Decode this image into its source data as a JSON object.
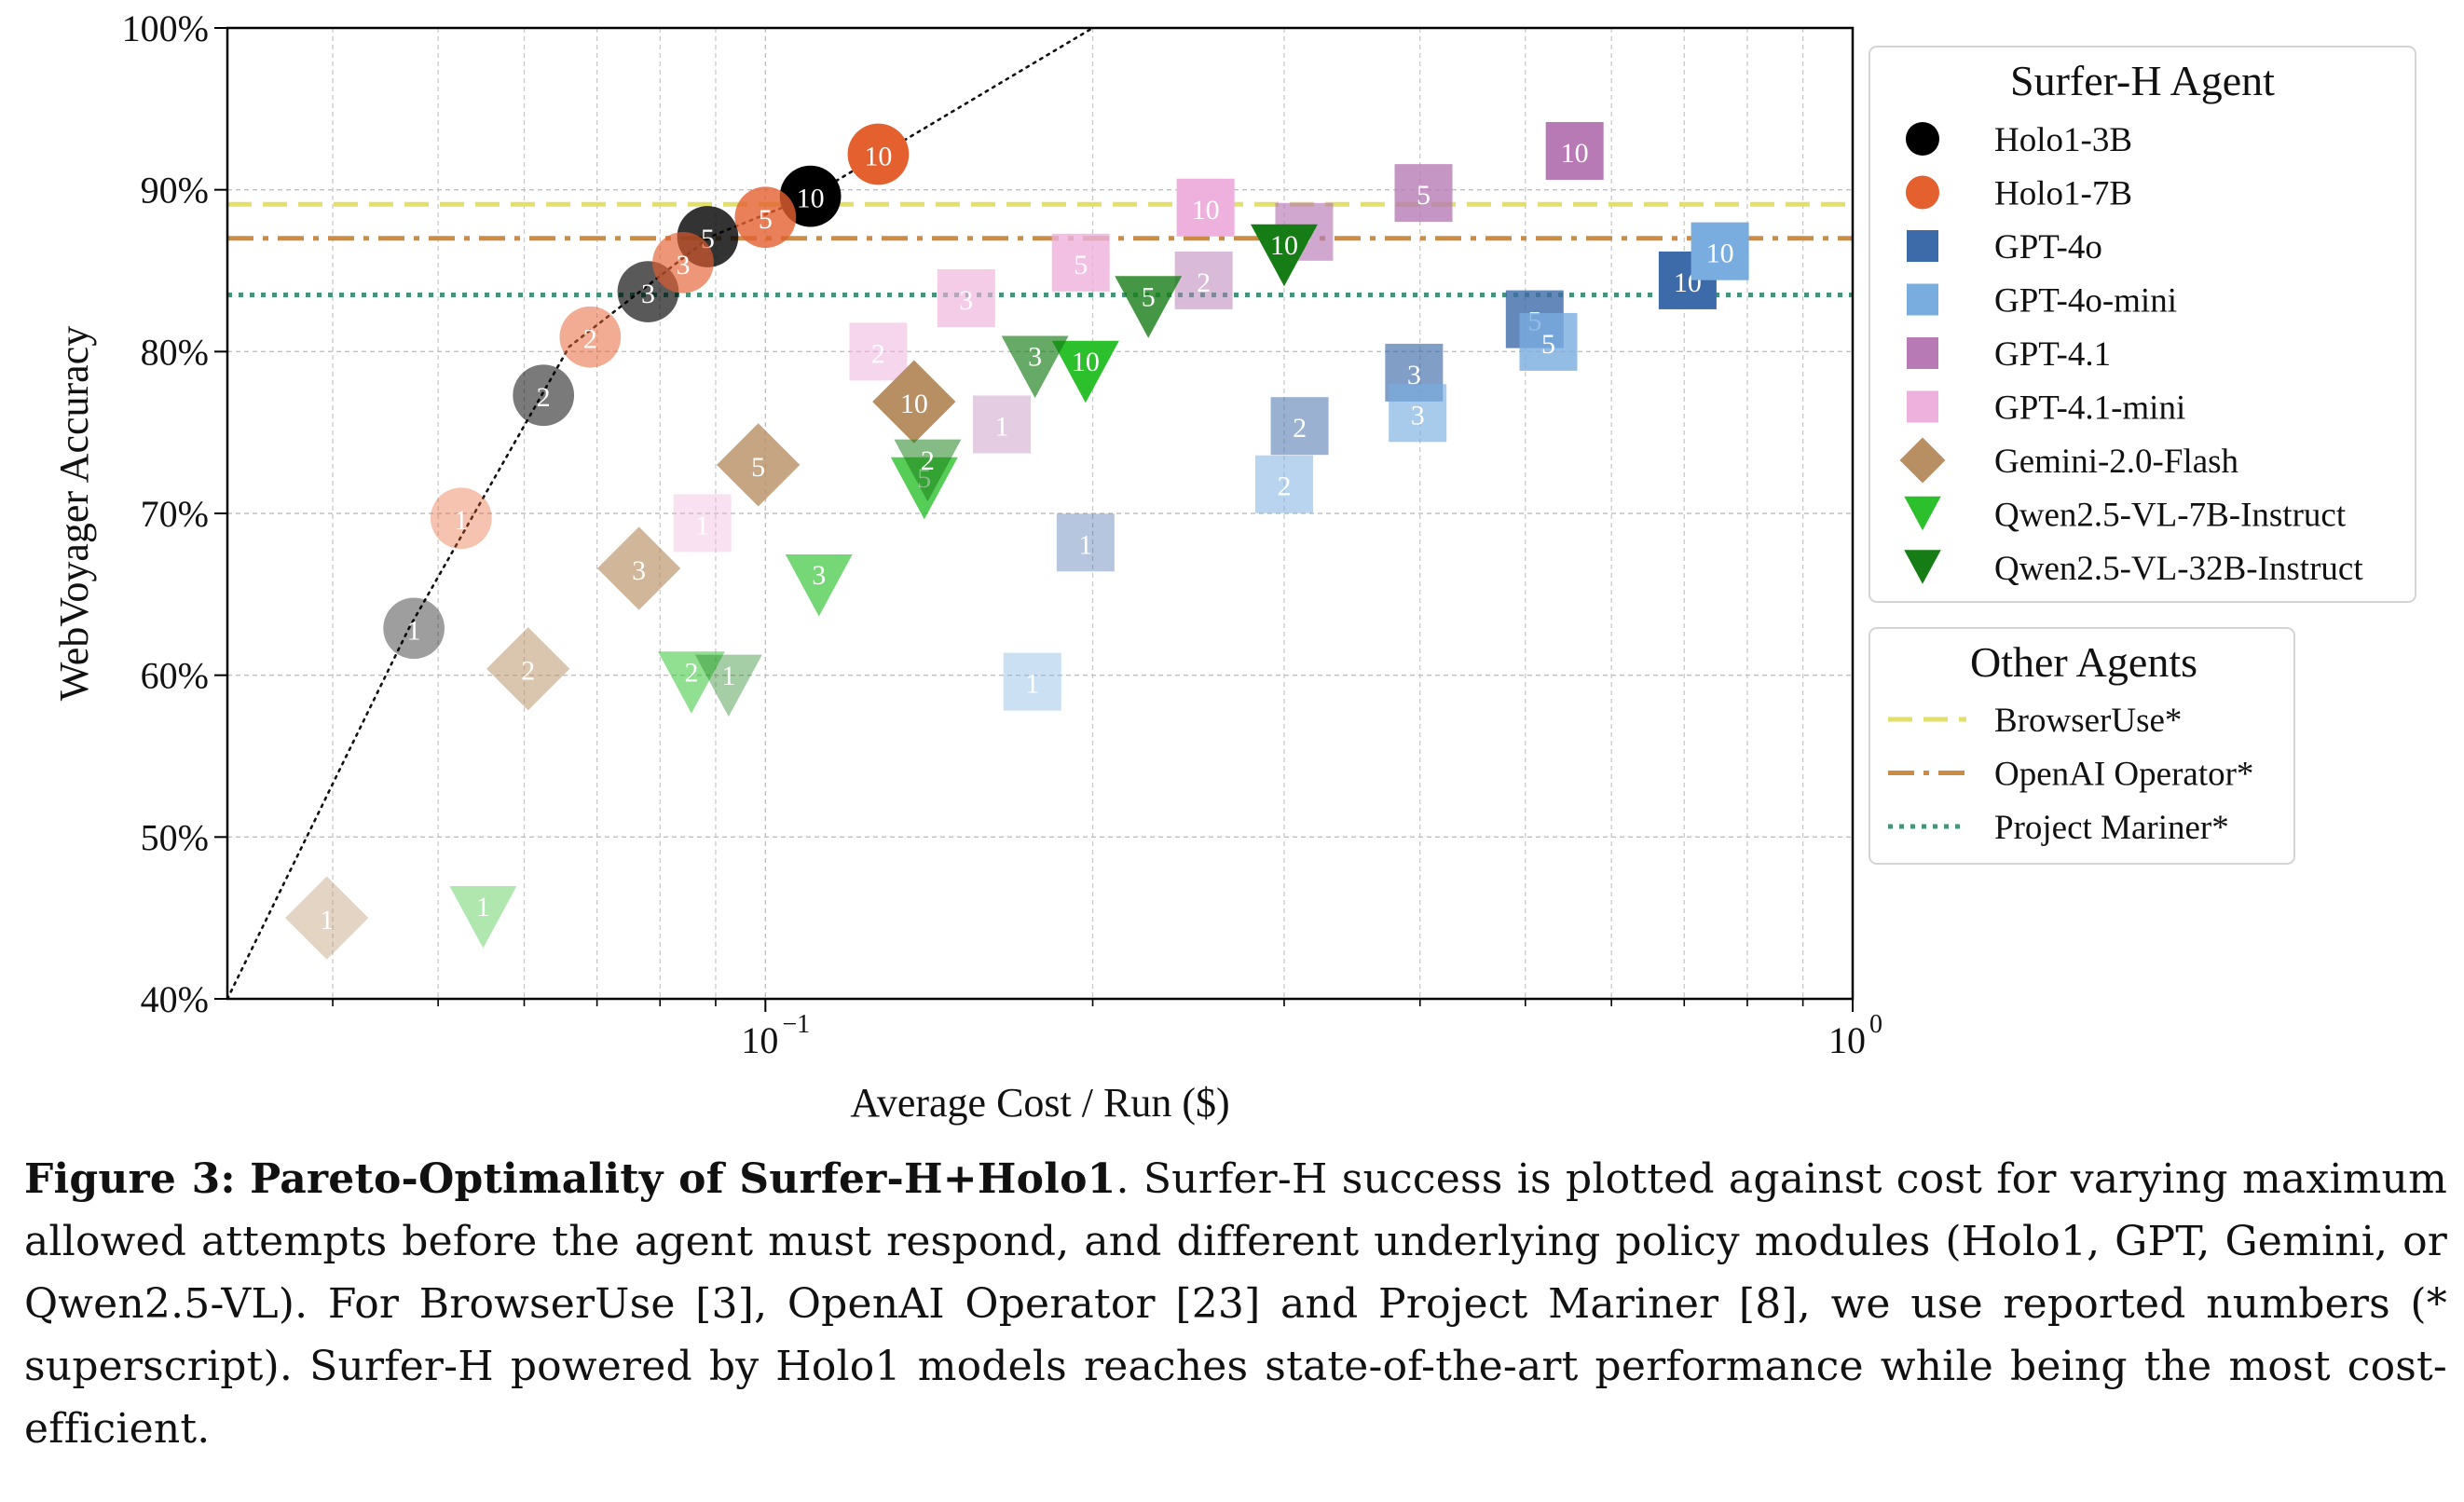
{
  "chart_data": {
    "type": "scatter",
    "xscale": "log",
    "xlabel": "Average Cost / Run ($)",
    "ylabel": "WebVoyager Accuracy",
    "xlim": [
      0.032,
      1.0
    ],
    "ylim": [
      40,
      100
    ],
    "x_ticks": [
      {
        "value": 0.1,
        "base": "10",
        "exp": "−1"
      },
      {
        "value": 1.0,
        "base": "10",
        "exp": "0"
      }
    ],
    "y_ticks": [
      "40%",
      "50%",
      "60%",
      "70%",
      "80%",
      "90%",
      "100%"
    ],
    "grid": true,
    "pareto_front": [
      [
        0.032,
        40
      ],
      [
        0.047,
        62.9
      ],
      [
        0.066,
        80.3
      ],
      [
        0.089,
        87.1
      ],
      [
        0.11,
        89.6
      ],
      [
        0.2,
        100
      ]
    ],
    "legend_surfer": {
      "title": "Surfer-H Agent",
      "entries": [
        {
          "name": "Holo1-3B",
          "marker": "circle",
          "color": "#000000"
        },
        {
          "name": "Holo1-7B",
          "marker": "circle",
          "color": "#e4602f"
        },
        {
          "name": "GPT-4o",
          "marker": "square",
          "color": "#3d6aa8"
        },
        {
          "name": "GPT-4o-mini",
          "marker": "square",
          "color": "#79ade0"
        },
        {
          "name": "GPT-4.1",
          "marker": "square",
          "color": "#b77ab5"
        },
        {
          "name": "GPT-4.1-mini",
          "marker": "square",
          "color": "#eeb0dc"
        },
        {
          "name": "Gemini-2.0-Flash",
          "marker": "diamond",
          "color": "#b88f63"
        },
        {
          "name": "Qwen2.5-VL-7B-Instruct",
          "marker": "triangle",
          "color": "#2cc12c"
        },
        {
          "name": "Qwen2.5-VL-32B-Instruct",
          "marker": "triangle",
          "color": "#167d16"
        }
      ]
    },
    "legend_other": {
      "title": "Other Agents",
      "entries": [
        {
          "name": "BrowserUse*",
          "value": 89.1,
          "style": "dashed",
          "color": "#e2df6a"
        },
        {
          "name": "OpenAI Operator*",
          "value": 87.0,
          "style": "dashdot",
          "color": "#cc8c44"
        },
        {
          "name": "Project Mariner*",
          "value": 83.5,
          "style": "dotted",
          "color": "#45947a"
        }
      ]
    },
    "series": [
      {
        "name": "Holo1-3B",
        "marker": "circle",
        "color": "#000000",
        "points": [
          {
            "x": 0.0475,
            "y": 62.9,
            "label": "1"
          },
          {
            "x": 0.0625,
            "y": 77.3,
            "label": "2"
          },
          {
            "x": 0.078,
            "y": 83.7,
            "label": "3"
          },
          {
            "x": 0.0885,
            "y": 87.1,
            "label": "5"
          },
          {
            "x": 0.11,
            "y": 89.6,
            "label": "10"
          }
        ]
      },
      {
        "name": "Holo1-7B",
        "marker": "circle",
        "color": "#e4602f",
        "points": [
          {
            "x": 0.0525,
            "y": 69.7,
            "label": "1"
          },
          {
            "x": 0.069,
            "y": 80.9,
            "label": "2"
          },
          {
            "x": 0.084,
            "y": 85.5,
            "label": "3"
          },
          {
            "x": 0.1,
            "y": 88.3,
            "label": "5"
          },
          {
            "x": 0.127,
            "y": 92.2,
            "label": "10"
          }
        ]
      },
      {
        "name": "GPT-4o",
        "marker": "square",
        "color": "#3d6aa8",
        "points": [
          {
            "x": 0.197,
            "y": 68.2,
            "label": "1"
          },
          {
            "x": 0.31,
            "y": 75.4,
            "label": "2"
          },
          {
            "x": 0.395,
            "y": 78.7,
            "label": "3"
          },
          {
            "x": 0.51,
            "y": 82.0,
            "label": "5"
          },
          {
            "x": 0.705,
            "y": 84.4,
            "label": "10"
          }
        ]
      },
      {
        "name": "GPT-4o-mini",
        "marker": "square",
        "color": "#79ade0",
        "points": [
          {
            "x": 0.176,
            "y": 59.6,
            "label": "1"
          },
          {
            "x": 0.3,
            "y": 71.8,
            "label": "2"
          },
          {
            "x": 0.398,
            "y": 76.2,
            "label": "3"
          },
          {
            "x": 0.525,
            "y": 80.6,
            "label": "5"
          },
          {
            "x": 0.755,
            "y": 86.2,
            "label": "10"
          }
        ]
      },
      {
        "name": "GPT-4.1",
        "marker": "square",
        "color": "#b77ab5",
        "points": [
          {
            "x": 0.165,
            "y": 75.5,
            "label": "1"
          },
          {
            "x": 0.253,
            "y": 84.4,
            "label": "2"
          },
          {
            "x": 0.313,
            "y": 87.4,
            "label": "3"
          },
          {
            "x": 0.403,
            "y": 89.8,
            "label": "5"
          },
          {
            "x": 0.555,
            "y": 92.4,
            "label": "10"
          }
        ]
      },
      {
        "name": "GPT-4.1-mini",
        "marker": "square",
        "color": "#eeb0dc",
        "points": [
          {
            "x": 0.0875,
            "y": 69.4,
            "label": "1"
          },
          {
            "x": 0.127,
            "y": 80.0,
            "label": "2"
          },
          {
            "x": 0.153,
            "y": 83.3,
            "label": "3"
          },
          {
            "x": 0.195,
            "y": 85.5,
            "label": "5"
          },
          {
            "x": 0.254,
            "y": 88.9,
            "label": "10"
          }
        ]
      },
      {
        "name": "Gemini-2.0-Flash",
        "marker": "diamond",
        "color": "#b88f63",
        "points": [
          {
            "x": 0.0395,
            "y": 45.0,
            "label": "1"
          },
          {
            "x": 0.0605,
            "y": 60.4,
            "label": "2"
          },
          {
            "x": 0.0765,
            "y": 66.6,
            "label": "3"
          },
          {
            "x": 0.0985,
            "y": 73.0,
            "label": "5"
          },
          {
            "x": 0.137,
            "y": 76.9,
            "label": "10"
          }
        ]
      },
      {
        "name": "Qwen2.5-VL-7B-Instruct",
        "marker": "triangle",
        "color": "#2cc12c",
        "points": [
          {
            "x": 0.055,
            "y": 45.0,
            "label": "1"
          },
          {
            "x": 0.0855,
            "y": 59.5,
            "label": "2"
          },
          {
            "x": 0.112,
            "y": 65.5,
            "label": "3"
          },
          {
            "x": 0.14,
            "y": 71.5,
            "label": "5"
          },
          {
            "x": 0.197,
            "y": 78.7,
            "label": "10"
          }
        ]
      },
      {
        "name": "Qwen2.5-VL-32B-Instruct",
        "marker": "triangle",
        "color": "#167d16",
        "points": [
          {
            "x": 0.0925,
            "y": 59.3,
            "label": "1"
          },
          {
            "x": 0.141,
            "y": 72.6,
            "label": "2"
          },
          {
            "x": 0.177,
            "y": 79.0,
            "label": "3"
          },
          {
            "x": 0.225,
            "y": 82.7,
            "label": "5"
          },
          {
            "x": 0.3,
            "y": 85.9,
            "label": "10"
          }
        ]
      }
    ]
  },
  "caption": {
    "label": "Figure 3:",
    "title": "Pareto-Optimality of Surfer-H+Holo1",
    "text": ". Surfer-H success is plotted against cost for varying maximum allowed attempts before the agent must respond, and different underlying policy modules (Holo1, GPT, Gemini, or Qwen2.5-VL). For BrowserUse [3], OpenAI Operator [23] and Project Mariner [8], we use reported numbers (* superscript). Surfer-H powered by Holo1 models reaches state-of-the-art performance while being the most cost-efficient."
  }
}
